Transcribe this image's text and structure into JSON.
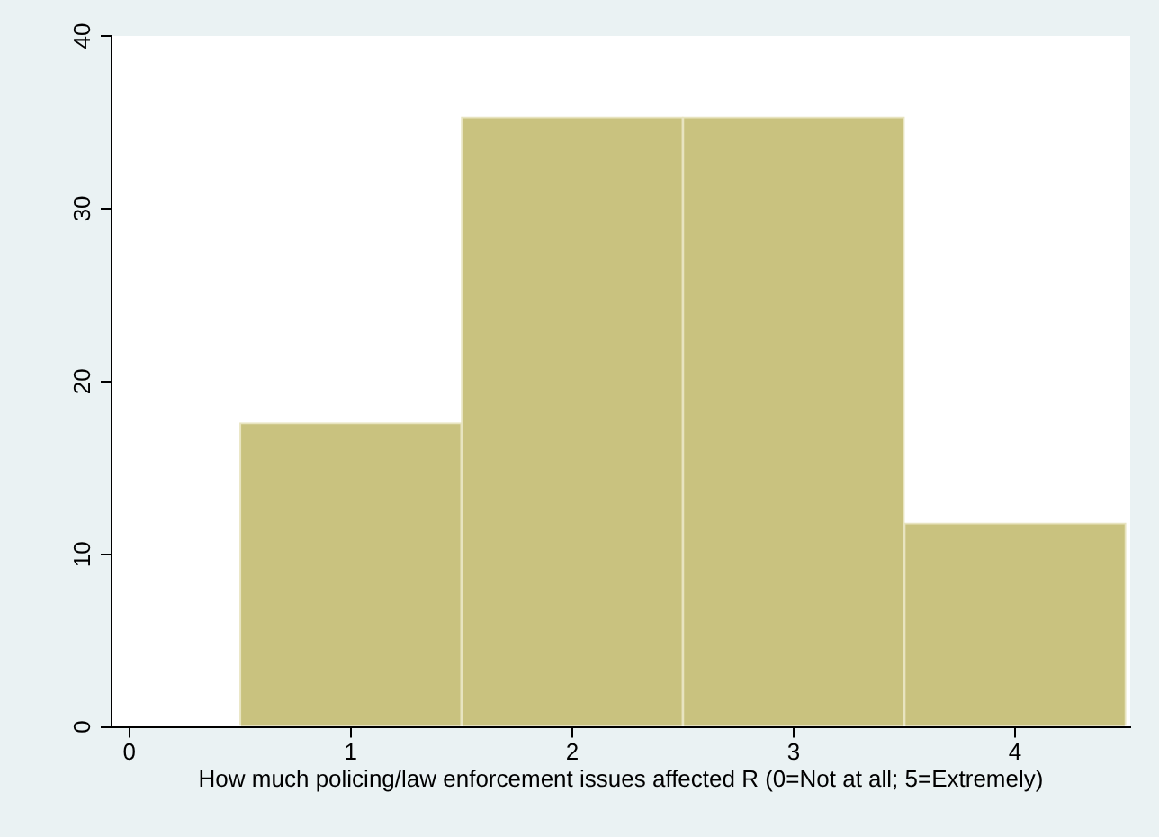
{
  "chart_data": {
    "type": "histogram",
    "xlabel": "How much policing/law enforcement issues affected R (0=Not at all; 5=Extremely)",
    "bins": [
      0.5,
      1.5,
      2.5,
      3.5,
      4.5
    ],
    "values": [
      17.6,
      35.3,
      35.3,
      11.8
    ],
    "color": "#c9c27f",
    "xlim": [
      -0.08,
      4.52
    ],
    "ylim": [
      0,
      40
    ],
    "xticks": [
      0,
      1,
      2,
      3,
      4
    ],
    "yticks": [
      0,
      10,
      20,
      30,
      40
    ],
    "grid": false,
    "legend": false
  }
}
